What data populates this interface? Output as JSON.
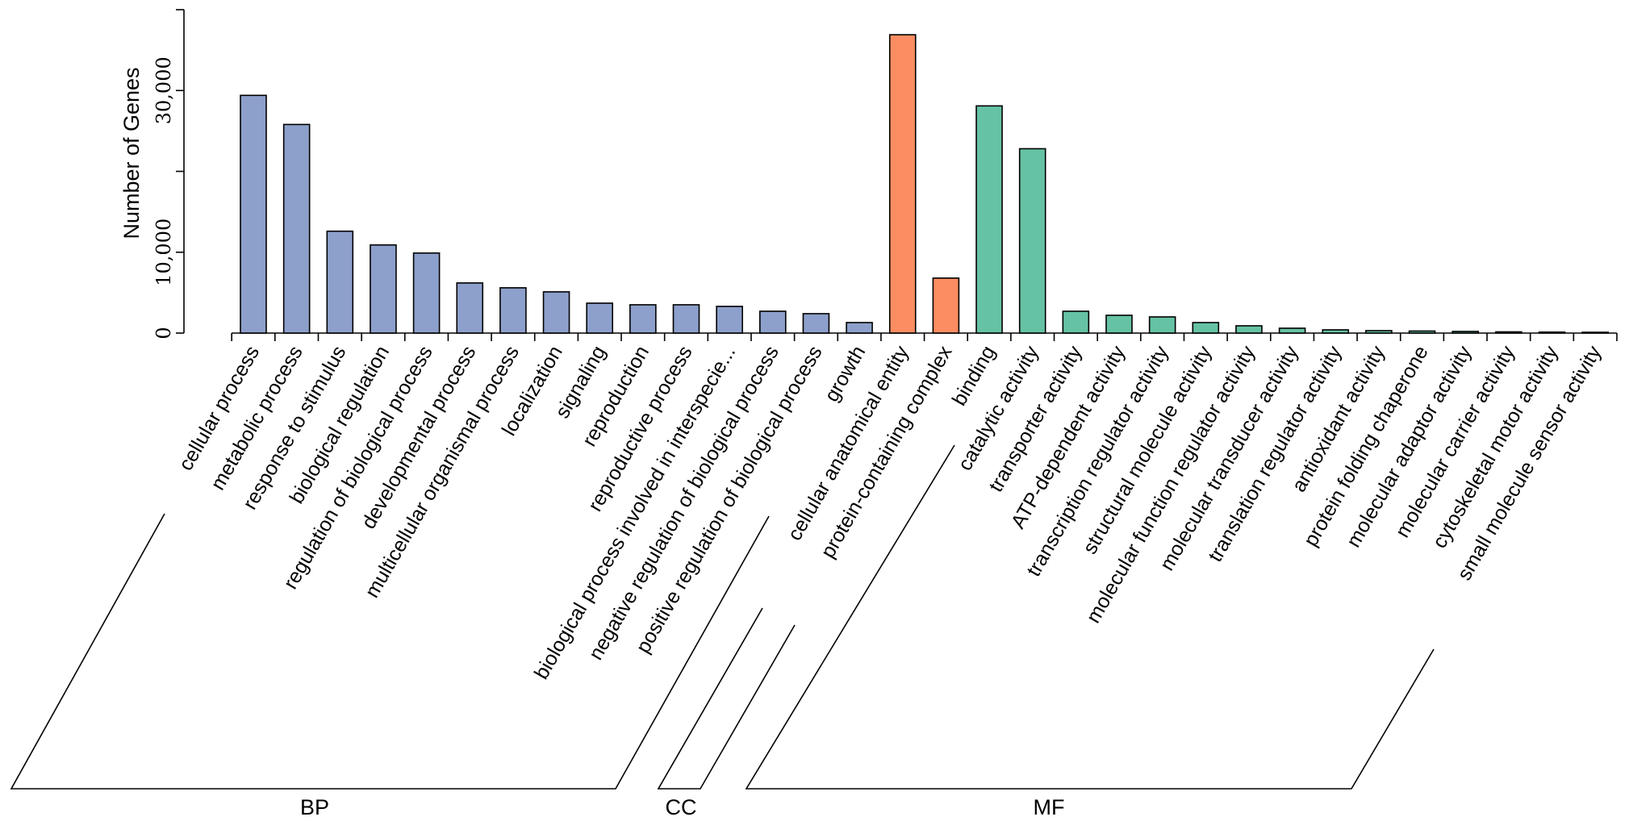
{
  "chart_data": {
    "type": "bar",
    "title": "",
    "xlabel": "",
    "ylabel": "Number of Genes",
    "ylim": [
      0,
      40000
    ],
    "yticks": [
      {
        "value": 0,
        "label": "0"
      },
      {
        "value": 10000,
        "label": "10,000"
      },
      {
        "value": 20000,
        "label": ""
      },
      {
        "value": 30000,
        "label": "30,000"
      },
      {
        "value": 40000,
        "label": ""
      }
    ],
    "categories": [
      "cellular process",
      "metabolic process",
      "response to stimulus",
      "biological regulation",
      "regulation of biological process",
      "developmental process",
      "multicellular organismal process",
      "localization",
      "signaling",
      "reproduction",
      "reproductive process",
      "biological process involved in interspecie...",
      "negative regulation of biological process",
      "positive regulation of biological process",
      "growth",
      "cellular anatomical entity",
      "protein-containing complex",
      "binding",
      "catalytic activity",
      "transporter activity",
      "ATP-dependent activity",
      "transcription regulator activity",
      "structural molecule activity",
      "molecular function regulator activity",
      "molecular transducer activity",
      "translation regulator activity",
      "antioxidant activity",
      "protein folding chaperone",
      "molecular adaptor activity",
      "molecular carrier activity",
      "cytoskeletal motor activity",
      "small molecule sensor activity"
    ],
    "values": [
      29400,
      25800,
      12600,
      10900,
      9900,
      6200,
      5600,
      5100,
      3700,
      3500,
      3500,
      3300,
      2700,
      2400,
      1300,
      36900,
      6800,
      28100,
      22800,
      2700,
      2200,
      2000,
      1300,
      900,
      600,
      400,
      300,
      250,
      200,
      150,
      120,
      100
    ],
    "groups": [
      {
        "name": "BP",
        "start": 0,
        "end": 14,
        "color": "#8DA0CB"
      },
      {
        "name": "CC",
        "start": 15,
        "end": 16,
        "color": "#FC8D62"
      },
      {
        "name": "MF",
        "start": 17,
        "end": 31,
        "color": "#66C2A5"
      }
    ]
  }
}
